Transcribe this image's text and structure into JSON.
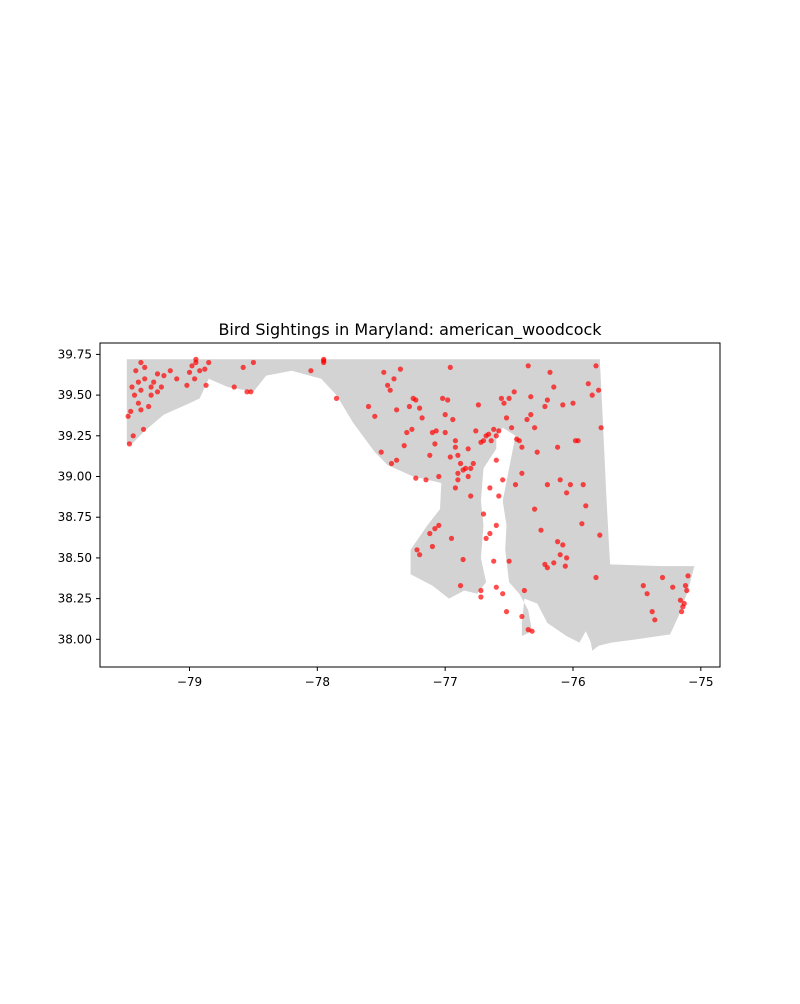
{
  "chart_data": {
    "type": "scatter",
    "title": "Bird Sightings in Maryland: american_woodcock",
    "xlabel": "",
    "ylabel": "",
    "xlim": [
      -79.7,
      -74.85
    ],
    "ylim": [
      37.83,
      39.82
    ],
    "x_ticks": [
      -79,
      -78,
      -77,
      -76,
      -75
    ],
    "x_tick_labels": [
      "−79",
      "−78",
      "−77",
      "−76",
      "−75"
    ],
    "y_ticks": [
      38.0,
      38.25,
      38.5,
      38.75,
      39.0,
      39.25,
      39.5,
      39.75
    ],
    "y_tick_labels": [
      "38.00",
      "38.25",
      "38.50",
      "38.75",
      "39.00",
      "39.25",
      "39.50",
      "39.75"
    ],
    "grid": false,
    "legend": "none",
    "colors": {
      "state_fill": "#d3d3d3",
      "point": "#ff0000",
      "axis": "#000000"
    },
    "state_outline": [
      [
        -79.49,
        39.72
      ],
      [
        -77.95,
        39.72
      ],
      [
        -77.6,
        39.72
      ],
      [
        -76.4,
        39.72
      ],
      [
        -75.79,
        39.72
      ],
      [
        -75.77,
        39.4
      ],
      [
        -75.74,
        38.9
      ],
      [
        -75.72,
        38.6
      ],
      [
        -75.71,
        38.46
      ],
      [
        -75.3,
        38.45
      ],
      [
        -75.05,
        38.45
      ],
      [
        -75.1,
        38.3
      ],
      [
        -75.17,
        38.15
      ],
      [
        -75.24,
        38.03
      ],
      [
        -75.5,
        38.0
      ],
      [
        -75.7,
        37.98
      ],
      [
        -75.8,
        37.96
      ],
      [
        -75.85,
        37.93
      ],
      [
        -75.86,
        37.98
      ],
      [
        -75.9,
        38.05
      ],
      [
        -75.95,
        37.98
      ],
      [
        -76.05,
        38.02
      ],
      [
        -76.2,
        38.1
      ],
      [
        -76.28,
        38.22
      ],
      [
        -76.38,
        38.25
      ],
      [
        -76.4,
        38.1
      ],
      [
        -76.4,
        38.02
      ],
      [
        -76.32,
        38.05
      ],
      [
        -76.35,
        38.18
      ],
      [
        -76.42,
        38.28
      ],
      [
        -76.5,
        38.35
      ],
      [
        -76.53,
        38.55
      ],
      [
        -76.52,
        38.7
      ],
      [
        -76.55,
        38.85
      ],
      [
        -76.5,
        39.05
      ],
      [
        -76.45,
        39.25
      ],
      [
        -76.55,
        39.3
      ],
      [
        -76.6,
        39.25
      ],
      [
        -76.6,
        39.17
      ],
      [
        -76.7,
        39.05
      ],
      [
        -76.72,
        38.85
      ],
      [
        -76.7,
        38.7
      ],
      [
        -76.72,
        38.5
      ],
      [
        -76.68,
        38.35
      ],
      [
        -76.75,
        38.28
      ],
      [
        -76.85,
        38.3
      ],
      [
        -76.97,
        38.25
      ],
      [
        -77.1,
        38.33
      ],
      [
        -77.27,
        38.4
      ],
      [
        -77.27,
        38.55
      ],
      [
        -77.14,
        38.7
      ],
      [
        -77.04,
        38.8
      ],
      [
        -77.03,
        38.96
      ],
      [
        -77.25,
        39.0
      ],
      [
        -77.45,
        39.07
      ],
      [
        -77.55,
        39.15
      ],
      [
        -77.72,
        39.33
      ],
      [
        -77.85,
        39.5
      ],
      [
        -77.97,
        39.6
      ],
      [
        -78.2,
        39.65
      ],
      [
        -78.4,
        39.62
      ],
      [
        -78.5,
        39.52
      ],
      [
        -78.7,
        39.55
      ],
      [
        -78.85,
        39.6
      ],
      [
        -78.92,
        39.48
      ],
      [
        -79.0,
        39.45
      ],
      [
        -79.2,
        39.38
      ],
      [
        -79.35,
        39.28
      ],
      [
        -79.45,
        39.2
      ],
      [
        -79.49,
        39.2
      ]
    ],
    "points": [
      [
        -79.45,
        39.55
      ],
      [
        -79.42,
        39.65
      ],
      [
        -79.38,
        39.7
      ],
      [
        -79.35,
        39.6
      ],
      [
        -79.3,
        39.55
      ],
      [
        -79.25,
        39.52
      ],
      [
        -79.2,
        39.62
      ],
      [
        -79.15,
        39.65
      ],
      [
        -79.1,
        39.6
      ],
      [
        -79.4,
        39.45
      ],
      [
        -79.38,
        39.41
      ],
      [
        -79.3,
        39.5
      ],
      [
        -79.44,
        39.25
      ],
      [
        -79.48,
        39.37
      ],
      [
        -79.46,
        39.4
      ],
      [
        -79.36,
        39.29
      ],
      [
        -79.32,
        39.43
      ],
      [
        -79.28,
        39.58
      ],
      [
        -79.22,
        39.55
      ],
      [
        -79.47,
        39.2
      ],
      [
        -79.4,
        39.58
      ],
      [
        -79.35,
        39.67
      ],
      [
        -79.25,
        39.63
      ],
      [
        -79.43,
        39.5
      ],
      [
        -79.38,
        39.53
      ],
      [
        -78.98,
        39.68
      ],
      [
        -78.95,
        39.7
      ],
      [
        -78.92,
        39.65
      ],
      [
        -78.88,
        39.66
      ],
      [
        -79.0,
        39.64
      ],
      [
        -78.96,
        39.6
      ],
      [
        -78.87,
        39.56
      ],
      [
        -79.02,
        39.56
      ],
      [
        -78.85,
        39.7
      ],
      [
        -78.95,
        39.72
      ],
      [
        -78.58,
        39.67
      ],
      [
        -78.55,
        39.52
      ],
      [
        -78.52,
        39.52
      ],
      [
        -78.5,
        39.7
      ],
      [
        -78.65,
        39.55
      ],
      [
        -77.95,
        39.71
      ],
      [
        -77.95,
        39.7
      ],
      [
        -77.95,
        39.72
      ],
      [
        -78.05,
        39.65
      ],
      [
        -77.85,
        39.48
      ],
      [
        -77.6,
        39.43
      ],
      [
        -77.55,
        39.37
      ],
      [
        -77.5,
        39.15
      ],
      [
        -77.48,
        39.64
      ],
      [
        -77.45,
        39.56
      ],
      [
        -77.43,
        39.53
      ],
      [
        -77.4,
        39.6
      ],
      [
        -77.38,
        39.41
      ],
      [
        -77.35,
        39.66
      ],
      [
        -77.32,
        39.19
      ],
      [
        -77.3,
        39.27
      ],
      [
        -77.28,
        39.43
      ],
      [
        -77.26,
        39.29
      ],
      [
        -77.25,
        39.48
      ],
      [
        -77.23,
        39.47
      ],
      [
        -77.2,
        39.42
      ],
      [
        -77.18,
        39.36
      ],
      [
        -77.15,
        38.98
      ],
      [
        -77.12,
        39.13
      ],
      [
        -77.1,
        39.27
      ],
      [
        -77.08,
        39.2
      ],
      [
        -77.07,
        39.28
      ],
      [
        -77.05,
        39.0
      ],
      [
        -77.02,
        39.48
      ],
      [
        -77.0,
        39.38
      ],
      [
        -76.98,
        39.47
      ],
      [
        -76.96,
        39.67
      ],
      [
        -76.94,
        39.35
      ],
      [
        -76.92,
        39.22
      ],
      [
        -76.9,
        39.02
      ],
      [
        -76.88,
        39.08
      ],
      [
        -76.86,
        39.04
      ],
      [
        -76.84,
        39.05
      ],
      [
        -76.82,
        39.17
      ],
      [
        -76.8,
        39.05
      ],
      [
        -76.78,
        39.08
      ],
      [
        -76.76,
        39.28
      ],
      [
        -76.74,
        39.44
      ],
      [
        -76.72,
        39.21
      ],
      [
        -76.7,
        39.22
      ],
      [
        -76.68,
        39.25
      ],
      [
        -76.66,
        39.26
      ],
      [
        -76.64,
        39.22
      ],
      [
        -76.62,
        39.29
      ],
      [
        -76.6,
        39.25
      ],
      [
        -76.58,
        39.28
      ],
      [
        -76.56,
        39.48
      ],
      [
        -76.54,
        39.45
      ],
      [
        -76.52,
        39.36
      ],
      [
        -76.5,
        39.48
      ],
      [
        -76.48,
        39.3
      ],
      [
        -76.46,
        39.52
      ],
      [
        -76.44,
        39.23
      ],
      [
        -76.42,
        39.22
      ],
      [
        -76.4,
        39.02
      ],
      [
        -76.36,
        39.35
      ],
      [
        -76.35,
        39.68
      ],
      [
        -76.33,
        39.49
      ],
      [
        -76.3,
        38.8
      ],
      [
        -76.25,
        38.67
      ],
      [
        -76.22,
        39.43
      ],
      [
        -76.2,
        39.47
      ],
      [
        -76.18,
        39.64
      ],
      [
        -76.15,
        39.55
      ],
      [
        -76.12,
        39.18
      ],
      [
        -76.1,
        38.98
      ],
      [
        -76.08,
        39.44
      ],
      [
        -76.05,
        38.9
      ],
      [
        -76.02,
        38.95
      ],
      [
        -76.0,
        39.45
      ],
      [
        -75.98,
        39.22
      ],
      [
        -75.96,
        39.22
      ],
      [
        -75.93,
        38.71
      ],
      [
        -75.9,
        38.82
      ],
      [
        -75.88,
        39.57
      ],
      [
        -75.85,
        39.5
      ],
      [
        -75.82,
        39.68
      ],
      [
        -75.8,
        39.53
      ],
      [
        -75.78,
        39.3
      ],
      [
        -75.79,
        38.64
      ],
      [
        -75.82,
        38.38
      ],
      [
        -75.92,
        38.95
      ],
      [
        -76.12,
        38.6
      ],
      [
        -76.08,
        38.58
      ],
      [
        -76.05,
        38.5
      ],
      [
        -76.06,
        38.45
      ],
      [
        -76.1,
        38.52
      ],
      [
        -76.15,
        38.47
      ],
      [
        -76.2,
        38.44
      ],
      [
        -76.22,
        38.46
      ],
      [
        -76.38,
        38.3
      ],
      [
        -76.4,
        38.14
      ],
      [
        -76.35,
        38.06
      ],
      [
        -76.32,
        38.05
      ],
      [
        -76.52,
        38.17
      ],
      [
        -76.55,
        38.28
      ],
      [
        -76.6,
        38.32
      ],
      [
        -76.62,
        38.48
      ],
      [
        -76.65,
        38.65
      ],
      [
        -76.68,
        38.62
      ],
      [
        -76.7,
        38.77
      ],
      [
        -76.72,
        38.3
      ],
      [
        -76.72,
        38.26
      ],
      [
        -76.6,
        38.7
      ],
      [
        -76.58,
        38.88
      ],
      [
        -76.5,
        38.48
      ],
      [
        -76.88,
        38.33
      ],
      [
        -76.86,
        38.49
      ],
      [
        -76.9,
        38.98
      ],
      [
        -76.92,
        38.93
      ],
      [
        -76.95,
        38.62
      ],
      [
        -77.05,
        38.7
      ],
      [
        -77.08,
        38.68
      ],
      [
        -77.1,
        38.57
      ],
      [
        -77.12,
        38.65
      ],
      [
        -77.2,
        38.52
      ],
      [
        -77.22,
        38.55
      ],
      [
        -77.23,
        38.99
      ],
      [
        -77.38,
        39.1
      ],
      [
        -77.42,
        39.08
      ],
      [
        -76.8,
        38.88
      ],
      [
        -76.82,
        39.0
      ],
      [
        -76.9,
        39.13
      ],
      [
        -76.92,
        39.18
      ],
      [
        -76.96,
        39.12
      ],
      [
        -77.0,
        39.27
      ],
      [
        -76.4,
        39.18
      ],
      [
        -76.45,
        38.95
      ],
      [
        -76.55,
        38.98
      ],
      [
        -76.6,
        39.1
      ],
      [
        -76.65,
        38.93
      ],
      [
        -76.3,
        39.3
      ],
      [
        -76.33,
        39.38
      ],
      [
        -76.28,
        39.15
      ],
      [
        -76.2,
        38.95
      ],
      [
        -75.45,
        38.33
      ],
      [
        -75.42,
        38.28
      ],
      [
        -75.38,
        38.17
      ],
      [
        -75.36,
        38.12
      ],
      [
        -75.3,
        38.38
      ],
      [
        -75.22,
        38.32
      ],
      [
        -75.16,
        38.24
      ],
      [
        -75.14,
        38.2
      ],
      [
        -75.13,
        38.22
      ],
      [
        -75.12,
        38.33
      ],
      [
        -75.11,
        38.3
      ],
      [
        -75.1,
        38.39
      ],
      [
        -75.15,
        38.17
      ]
    ]
  }
}
